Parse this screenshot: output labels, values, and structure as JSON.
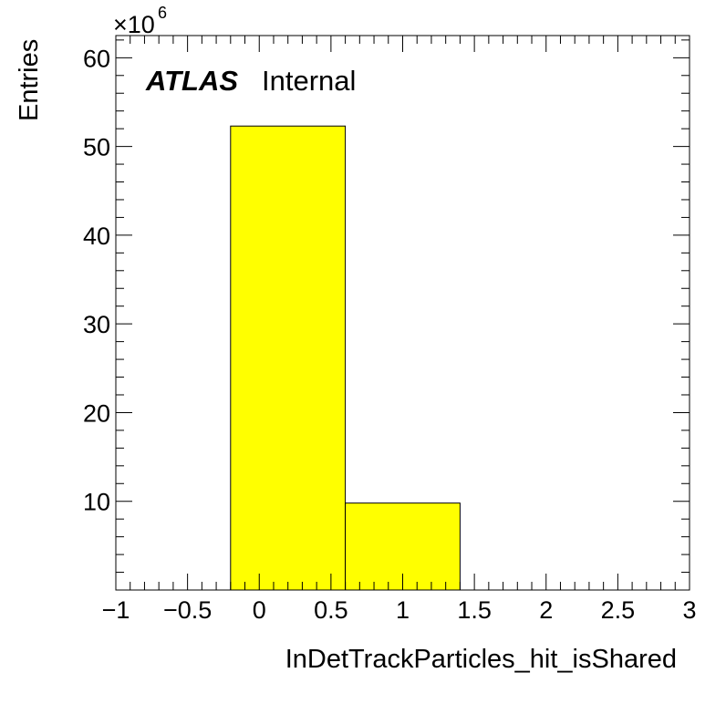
{
  "chart_data": {
    "type": "bar",
    "histogram": true,
    "bins": [
      {
        "low": -0.2,
        "high": 0.6,
        "value": 52.3
      },
      {
        "low": 0.6,
        "high": 1.4,
        "value": 9.8
      }
    ],
    "xlabel": "InDetTrackParticles_hit_isShared",
    "ylabel": "Entries",
    "y_multiplier": {
      "base": "×10",
      "exponent": "6"
    },
    "xlim": [
      -1,
      3
    ],
    "ylim": [
      0,
      62.5
    ],
    "x_ticks": [
      {
        "value": -1,
        "label": "−1"
      },
      {
        "value": -0.5,
        "label": "−0.5"
      },
      {
        "value": 0,
        "label": "0"
      },
      {
        "value": 0.5,
        "label": "0.5"
      },
      {
        "value": 1,
        "label": "1"
      },
      {
        "value": 1.5,
        "label": "1.5"
      },
      {
        "value": 2,
        "label": "2"
      },
      {
        "value": 2.5,
        "label": "2.5"
      },
      {
        "value": 3,
        "label": "3"
      }
    ],
    "y_ticks": [
      {
        "value": 10,
        "label": "10"
      },
      {
        "value": 20,
        "label": "20"
      },
      {
        "value": 30,
        "label": "30"
      },
      {
        "value": 40,
        "label": "40"
      },
      {
        "value": 50,
        "label": "50"
      },
      {
        "value": 60,
        "label": "60"
      }
    ],
    "fill_color": "#ffff00",
    "edge_color": "#000000",
    "grid": false,
    "legend": "none"
  },
  "annotation": {
    "experiment": "ATLAS",
    "status": "Internal"
  }
}
